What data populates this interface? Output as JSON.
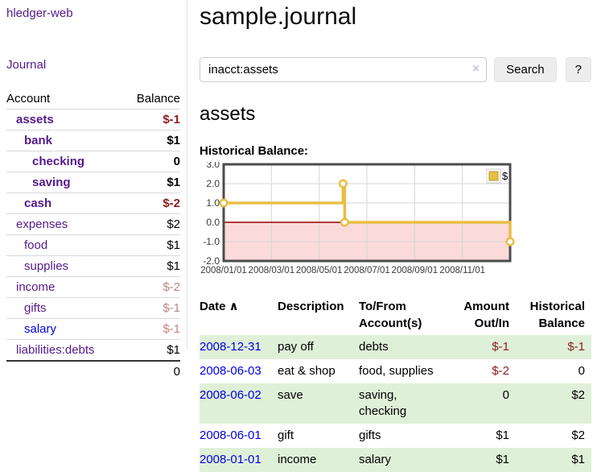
{
  "colors": {
    "brand_purple": "#551a8b",
    "link_blue": "#0000e6",
    "negative_strong": "#8b1c1c",
    "negative_soft": "#c28585",
    "row_green": "#dff0d8",
    "chart_gold": "#e8bf45"
  },
  "app": {
    "brand": "hledger-web"
  },
  "sidebar": {
    "journal_link": "Journal",
    "accounts": {
      "header": {
        "account": "Account",
        "balance": "Balance"
      },
      "rows": [
        {
          "name": "assets",
          "balance": "$-1"
        },
        {
          "name": "bank",
          "balance": "$1"
        },
        {
          "name": "checking",
          "balance": "0"
        },
        {
          "name": "saving",
          "balance": "$1"
        },
        {
          "name": "cash",
          "balance": "$-2"
        },
        {
          "name": "expenses",
          "balance": "$2"
        },
        {
          "name": "food",
          "balance": "$1"
        },
        {
          "name": "supplies",
          "balance": "$1"
        },
        {
          "name": "income",
          "balance": "$-2"
        },
        {
          "name": "gifts",
          "balance": "$-1"
        },
        {
          "name": "salary",
          "balance": "$-1"
        },
        {
          "name": "liabilities:debts",
          "balance": "$1"
        }
      ],
      "total": "0"
    }
  },
  "main": {
    "title": "sample.journal",
    "search": {
      "value": "inacct:assets",
      "clear_icon": "×",
      "search_button": "Search",
      "help_button": "?"
    },
    "account_heading": "assets",
    "chart_label": "Historical Balance:",
    "chart": {
      "type": "line-step",
      "legend": [
        {
          "label": "$",
          "color": "#e8bf45"
        }
      ],
      "y_ticks": [
        "3.0",
        "2.0",
        "1.0",
        "0.0",
        "-1.0",
        "-2.0"
      ],
      "y_values": [
        3,
        2,
        1,
        0,
        -1,
        -2
      ],
      "x_ticks": [
        {
          "label": "2008/01/01",
          "m": 0
        },
        {
          "label": "2008/03/01",
          "m": 2
        },
        {
          "label": "2008/05/01",
          "m": 4
        },
        {
          "label": "2008/07/01",
          "m": 6
        },
        {
          "label": "2008/09/01",
          "m": 8
        },
        {
          "label": "2008/11/01",
          "m": 10
        }
      ],
      "x_range_months": 12,
      "points": [
        {
          "date": "2008/01/01",
          "m": 0,
          "value": 1
        },
        {
          "date": "2008/06/01",
          "m": 5,
          "value": 2
        },
        {
          "date": "2008/06/03",
          "m": 5.07,
          "value": 0
        },
        {
          "date": "2008/12/31",
          "m": 12,
          "value": -1
        }
      ],
      "colors": {
        "line": "#e8bf45",
        "marker_fill": "#ffffff",
        "negative_fill": "#fbdada",
        "zero_line": "#990000",
        "grid": "#d6d6d6",
        "border": "#4c4c4c",
        "axis_text": "#3a3a3a",
        "legend_box_border": "#cccccc",
        "legend_swatch_border": "#b89a2e"
      }
    },
    "register": {
      "headers": {
        "date": "Date",
        "sort_caret": "∧",
        "description": "Description",
        "tofrom": "To/From Account(s)",
        "amount": "Amount Out/In",
        "balance": "Historical Balance"
      },
      "rows": [
        {
          "date": "2008-12-31",
          "description": "pay off",
          "accounts": "debts",
          "amount": "$-1",
          "balance": "$-1"
        },
        {
          "date": "2008-06-03",
          "description": "eat & shop",
          "accounts": "food, supplies",
          "amount": "$-2",
          "balance": "0"
        },
        {
          "date": "2008-06-02",
          "description": "save",
          "accounts": "saving, checking",
          "amount": "0",
          "balance": "$2"
        },
        {
          "date": "2008-06-01",
          "description": "gift",
          "accounts": "gifts",
          "amount": "$1",
          "balance": "$2"
        },
        {
          "date": "2008-01-01",
          "description": "income",
          "accounts": "salary",
          "amount": "$1",
          "balance": "$1"
        }
      ]
    }
  }
}
